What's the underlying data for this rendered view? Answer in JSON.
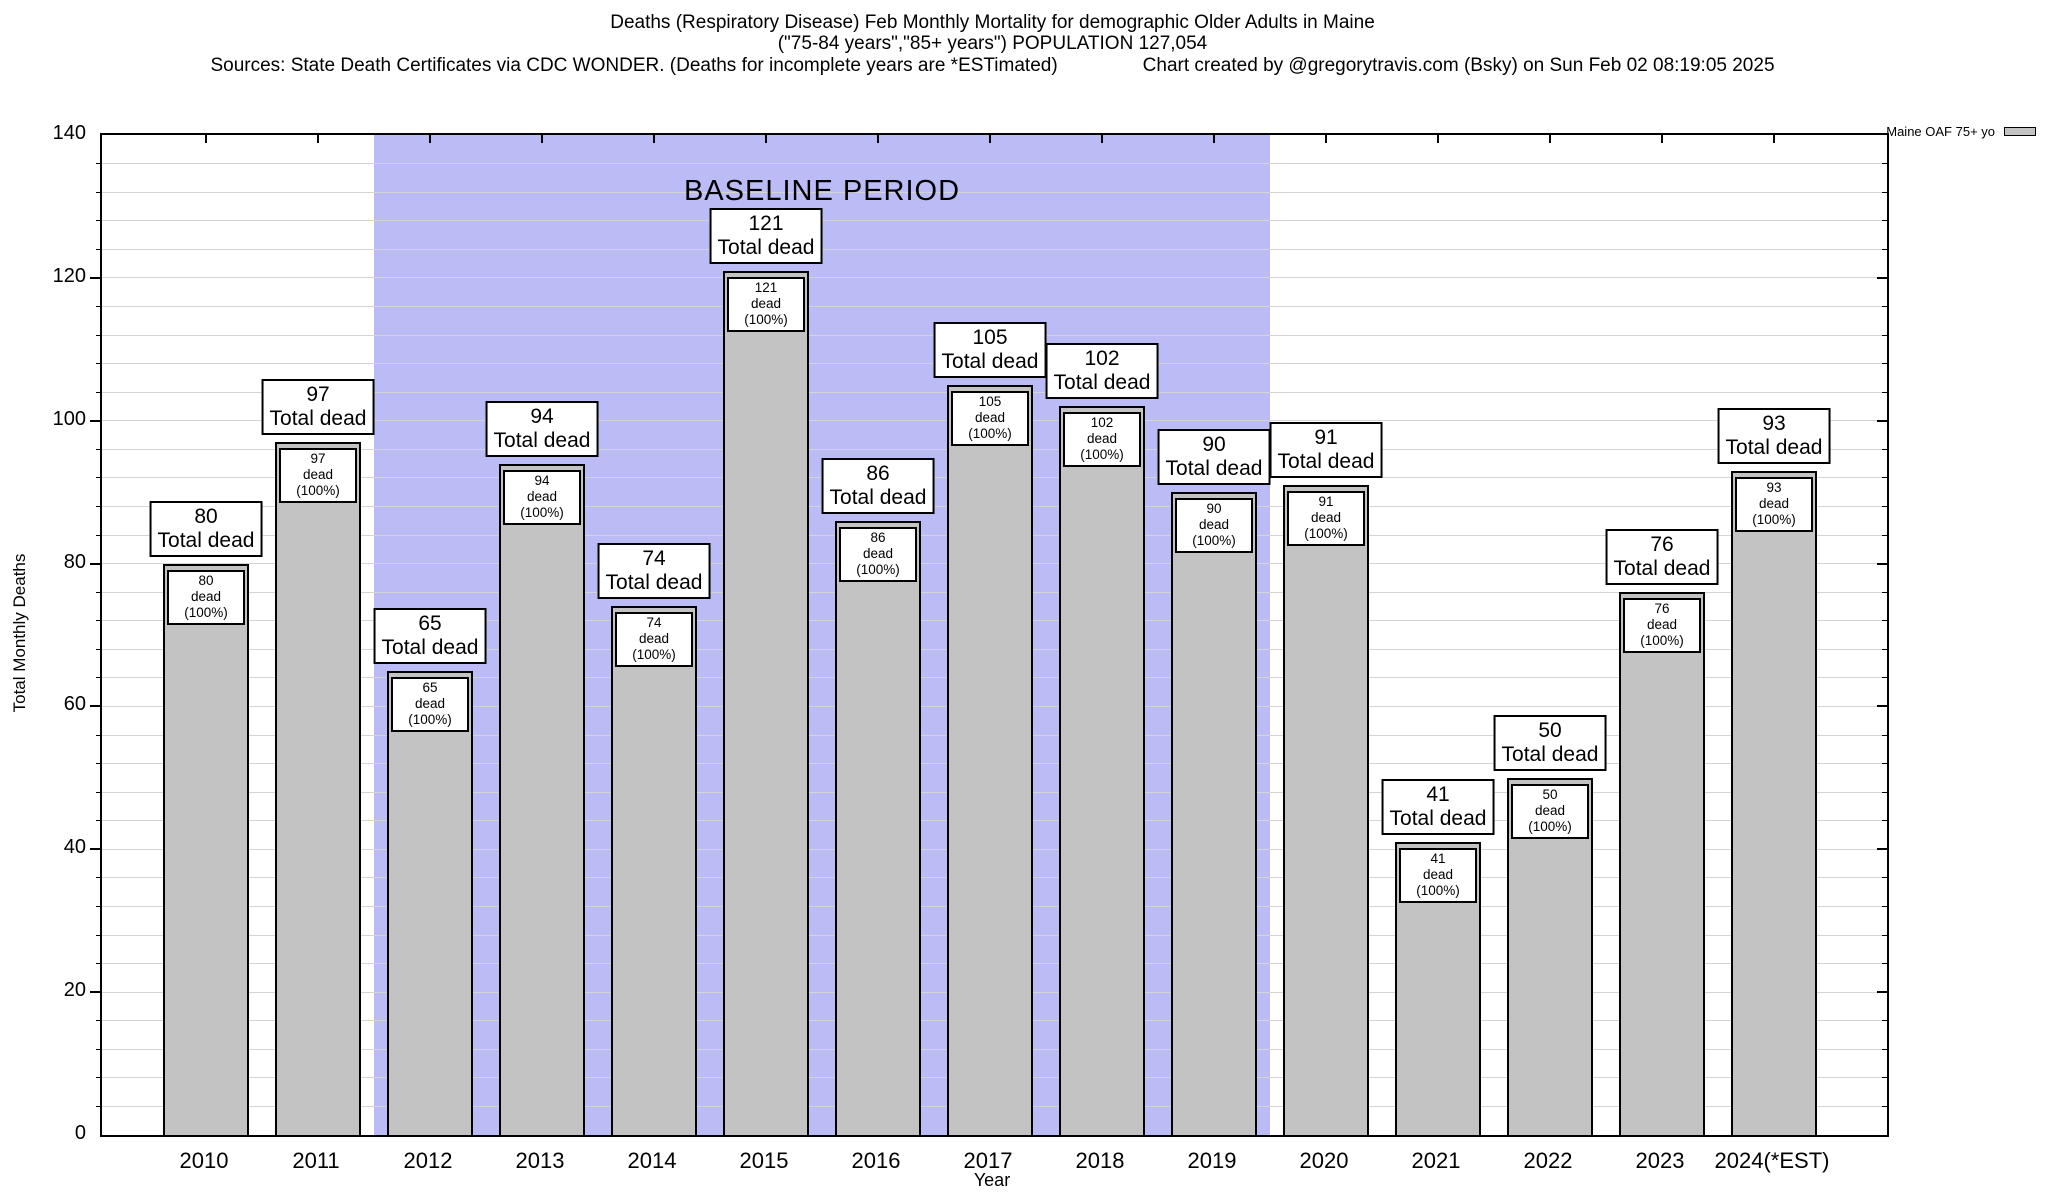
{
  "header": {
    "title_line1": "Deaths (Respiratory Disease) Feb Monthly Mortality for demographic Older Adults in Maine",
    "title_line2": "(\"75-84 years\",\"85+ years\") POPULATION 127,054",
    "sources": "Sources: State Death Certificates via CDC WONDER. (Deaths for incomplete years are *ESTimated)",
    "credit": "Chart created by @gregorytravis.com (Bsky) on Sun Feb 02 08:19:05 2025"
  },
  "legend": {
    "label": "Maine OAF 75+ yo"
  },
  "chart_data": {
    "type": "bar",
    "title": "Deaths (Respiratory Disease) Feb Monthly Mortality for demographic Older Adults in Maine",
    "subtitle": "(\"75-84 years\",\"85+ years\") POPULATION 127,054",
    "xlabel": "Year",
    "ylabel": "Total Monthly Deaths",
    "ylim": [
      0,
      140
    ],
    "yticks": [
      0,
      20,
      40,
      60,
      80,
      100,
      120,
      140
    ],
    "minor_grid_step": 4,
    "grid": "on",
    "legend_position": "top-right-outside",
    "categories": [
      "2010",
      "2011",
      "2012",
      "2013",
      "2014",
      "2015",
      "2016",
      "2017",
      "2018",
      "2019",
      "2020",
      "2021",
      "2022",
      "2023",
      "2024(*EST)"
    ],
    "series": [
      {
        "name": "Maine OAF 75+ yo",
        "values": [
          80,
          97,
          65,
          94,
          74,
          121,
          86,
          105,
          102,
          90,
          91,
          41,
          50,
          76,
          93
        ]
      }
    ],
    "bar_label_template": {
      "above_line2": "Total dead",
      "inside_line2": "dead (100%)"
    },
    "baseline": {
      "label": "BASELINE PERIOD",
      "start_index": 2,
      "end_index": 9,
      "start_category": "2012",
      "end_category": "2019"
    },
    "colors": {
      "bar_fill": "#c3c3c3",
      "bar_border": "#000000",
      "grid": "#d4d4d4",
      "baseline_fill": "#bbbbf6",
      "text": "#000000",
      "background": "#ffffff"
    }
  }
}
